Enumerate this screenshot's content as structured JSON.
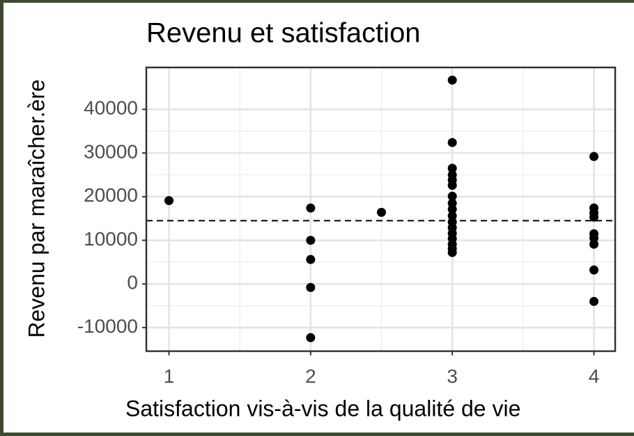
{
  "chart_data": {
    "type": "scatter",
    "title": "Revenu et satisfaction",
    "x_label": "Satisfaction vis-à-vis de la qualité de vie",
    "y_label": "Revenu par maraîcher.ère",
    "series": [
      {
        "color": "#000000",
        "x": [
          1,
          2,
          2,
          2,
          2,
          2,
          2.5,
          3,
          3,
          3,
          3,
          3,
          3,
          3,
          3,
          3,
          3,
          3,
          3,
          3,
          3,
          3,
          3,
          3,
          4,
          4,
          4,
          4,
          4,
          4,
          4,
          4,
          4
        ],
        "values": [
          19100,
          17400,
          10000,
          5600,
          -800,
          -12300,
          16400,
          46700,
          32400,
          26500,
          25000,
          23800,
          22600,
          20100,
          18500,
          17100,
          15600,
          14200,
          12900,
          11600,
          10400,
          9100,
          8100,
          7200,
          29200,
          17400,
          16300,
          15300,
          11500,
          10500,
          9100,
          3200,
          -4000
        ]
      }
    ],
    "hline": 14500,
    "xlim": [
      0.84,
      4.15
    ],
    "xticks": [
      1,
      2,
      3,
      4
    ],
    "ylim": [
      -15400,
      49600
    ],
    "yticks": [
      -10000,
      0,
      10000,
      20000,
      30000,
      40000
    ],
    "grid": true
  }
}
